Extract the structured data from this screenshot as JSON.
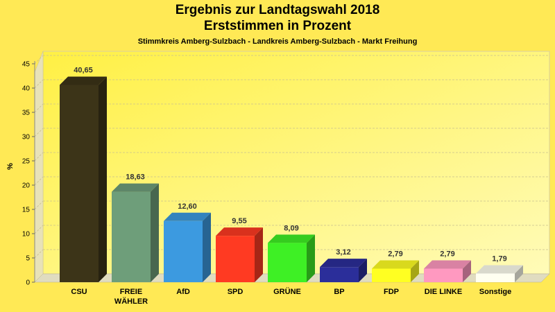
{
  "chart_data": {
    "type": "bar",
    "title": "Ergebnis zur Landtagswahl 2018",
    "title2": "Erststimmen in Prozent",
    "subtitle": "Stimmkreis Amberg-Sulzbach - Landkreis Amberg-Sulzbach - Markt Freihung",
    "ylabel": "%",
    "ylim": [
      0,
      45
    ],
    "yticks": [
      0,
      5,
      10,
      15,
      20,
      25,
      30,
      35,
      40,
      45
    ],
    "grid": true,
    "categories": [
      [
        "CSU"
      ],
      [
        "FREIE",
        "WÄHLER"
      ],
      [
        "AfD"
      ],
      [
        "SPD"
      ],
      [
        "GRÜNE"
      ],
      [
        "BP"
      ],
      [
        "FDP"
      ],
      [
        "DIE LINKE"
      ],
      [
        "Sonstige"
      ]
    ],
    "values": [
      40.65,
      18.63,
      12.6,
      9.55,
      8.09,
      3.12,
      2.79,
      2.79,
      1.79
    ],
    "value_labels": [
      "40,65",
      "18,63",
      "12,60",
      "9,55",
      "8,09",
      "3,12",
      "2,79",
      "2,79",
      "1,79"
    ],
    "colors": [
      "#3C3418",
      "#6E9E7A",
      "#3C9AE0",
      "#FF3A22",
      "#3EF025",
      "#2B2E9A",
      "#FFFF22",
      "#FF99C0",
      "#FFFFF0"
    ]
  }
}
